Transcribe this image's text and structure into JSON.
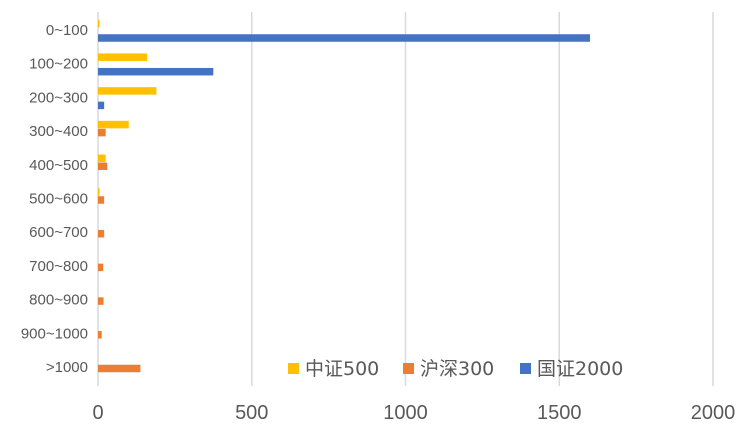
{
  "chart_data": {
    "type": "bar",
    "orientation": "horizontal",
    "title": "",
    "xlabel": "",
    "ylabel": "",
    "categories": [
      "0~100",
      "100~200",
      "200~300",
      "300~400",
      "400~500",
      "500~600",
      "600~700",
      "700~800",
      "800~900",
      "900~1000",
      ">1000"
    ],
    "series": [
      {
        "name": "中证500",
        "color": "#FFC000",
        "values": [
          5,
          160,
          190,
          100,
          25,
          5,
          0,
          0,
          0,
          0,
          0
        ]
      },
      {
        "name": "沪深300",
        "color": "#ED7D31",
        "values": [
          0,
          0,
          0,
          25,
          30,
          20,
          20,
          17,
          18,
          12,
          138
        ]
      },
      {
        "name": "国证2000",
        "color": "#4472C4",
        "values": [
          1600,
          375,
          20,
          0,
          0,
          0,
          0,
          0,
          0,
          0,
          0
        ]
      }
    ],
    "xlim": [
      0,
      2000
    ],
    "xticks": [
      "0",
      "500",
      "1000",
      "1500",
      "2000"
    ],
    "grid": true,
    "legend": "bottom-right"
  }
}
